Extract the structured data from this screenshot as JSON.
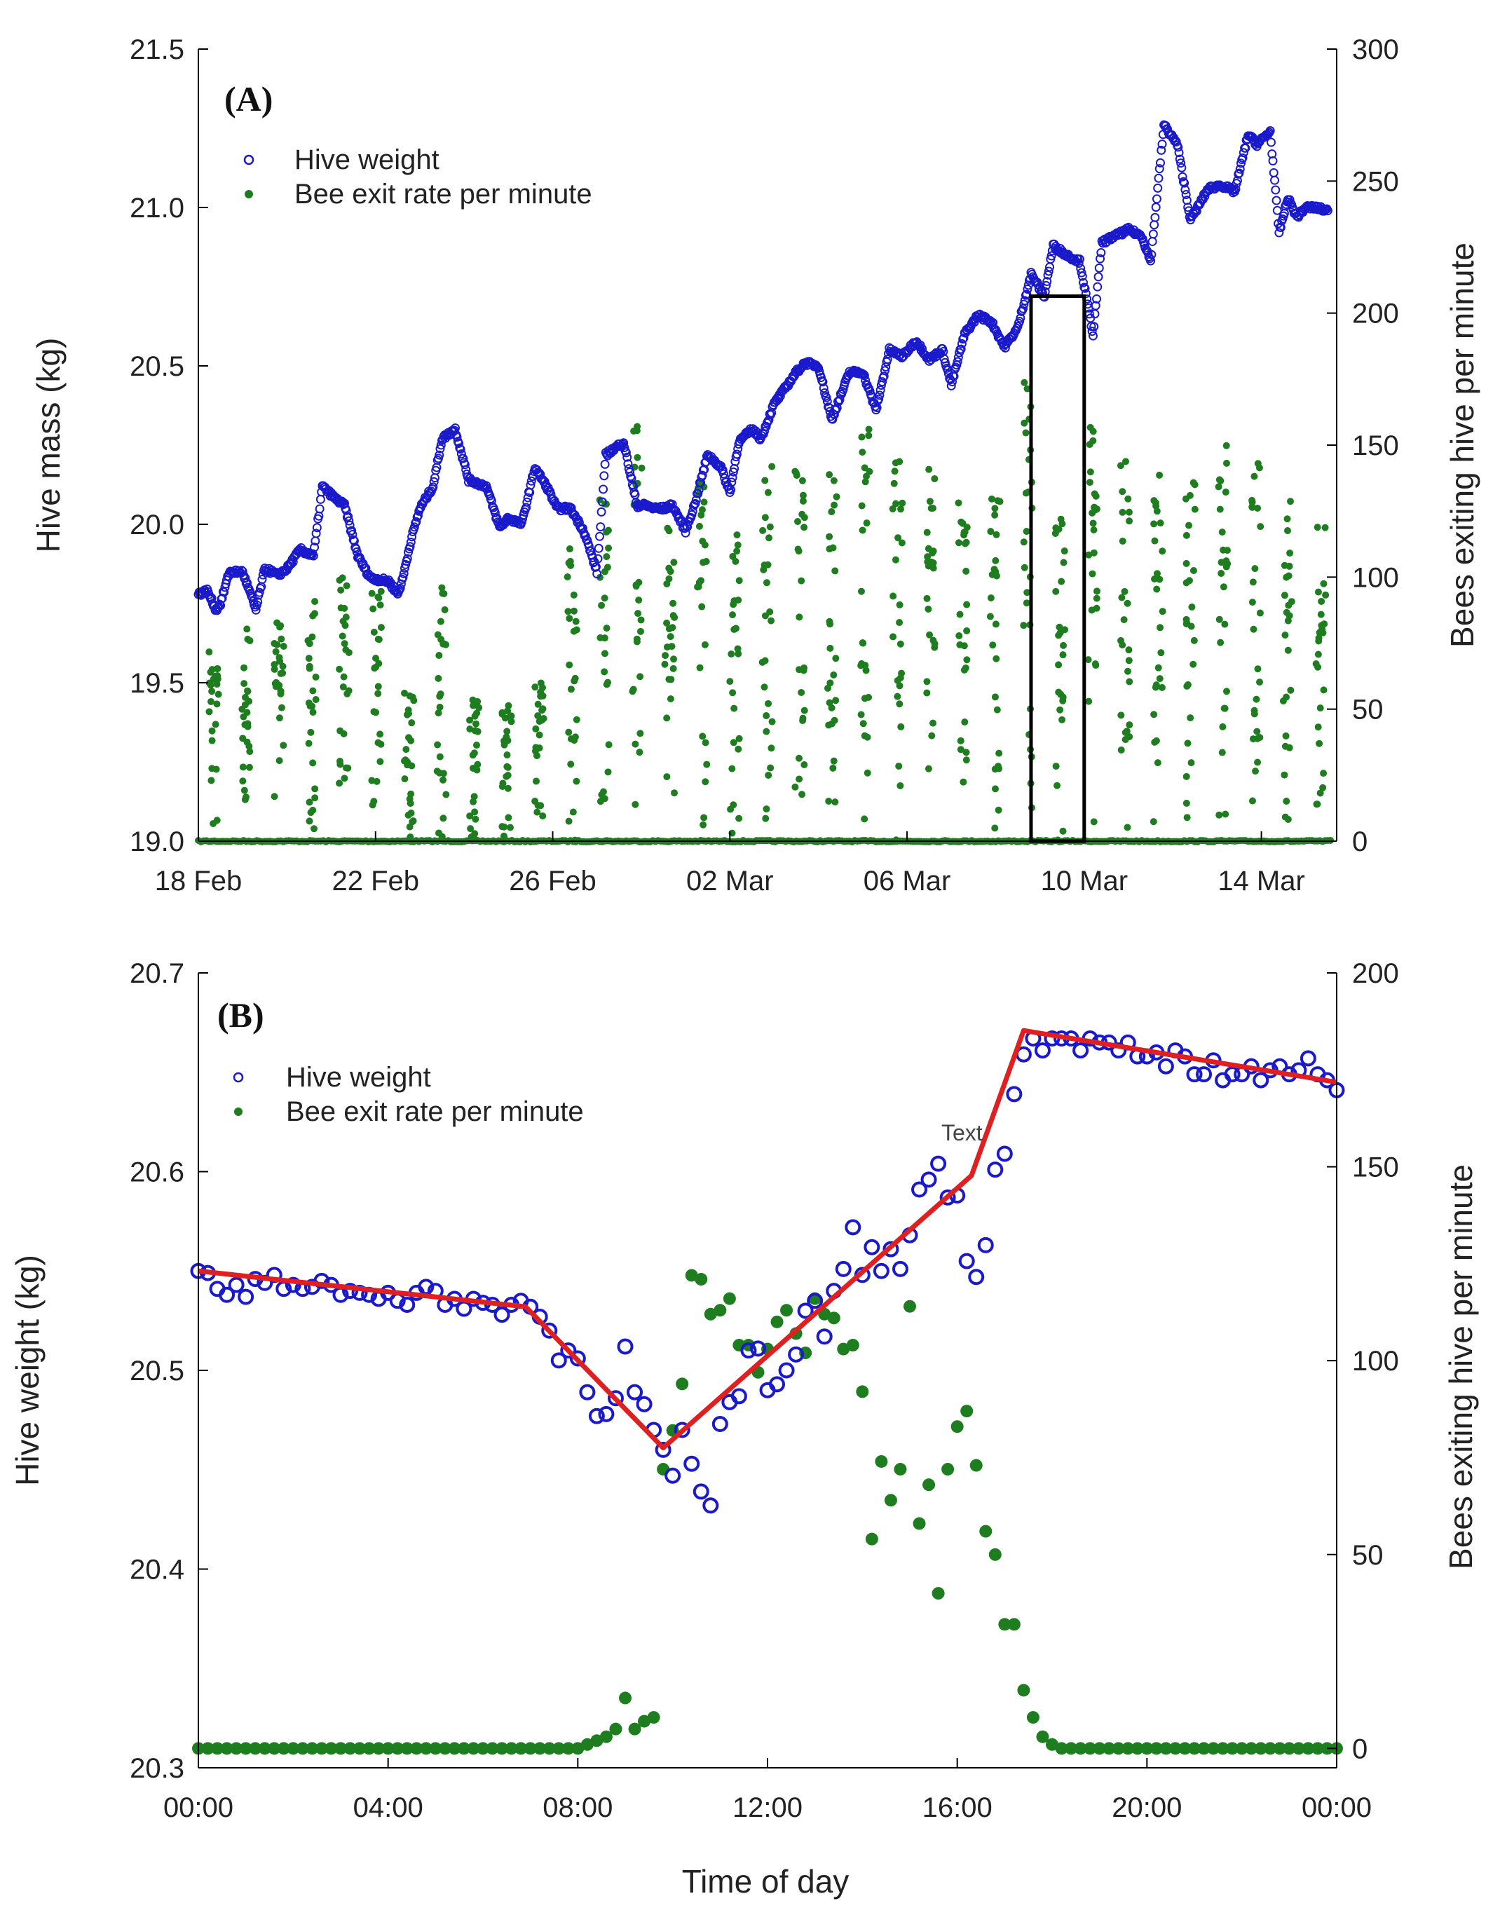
{
  "colors": {
    "hive_weight": "#1a1acc",
    "bee_exit": "#1e7d1e",
    "fit_line": "#e02020",
    "axis": "#000000"
  },
  "chart_data": [
    {
      "panel": "(A)",
      "type": "scatter",
      "xaxis": {
        "range": [
          0,
          25.7
        ],
        "tick_values": [
          0,
          4,
          8,
          12,
          16,
          20,
          24
        ],
        "tick_labels": [
          "18 Feb",
          "22 Feb",
          "26 Feb",
          "02 Mar",
          "06 Mar",
          "10 Mar",
          "14 Mar"
        ]
      },
      "ylabel": "Hive mass (kg)",
      "ylim": [
        19.0,
        21.5
      ],
      "yticks": [
        "19.0",
        "19.5",
        "20.0",
        "20.5",
        "21.0",
        "21.5"
      ],
      "y2label": "Bees exiting hive per minute",
      "y2lim": [
        0,
        300
      ],
      "y2ticks": [
        "0",
        "50",
        "100",
        "150",
        "200",
        "250",
        "300"
      ],
      "legend": {
        "position": "top-left",
        "entries": [
          "Hive weight",
          "Bee exit rate per minute"
        ]
      },
      "highlight_box": {
        "x_start": 18.8,
        "x_end": 20.0,
        "y_start": 19.0,
        "y_end": 20.72
      },
      "series": [
        {
          "name": "Hive weight",
          "axis": "left",
          "x": [
            0.0,
            0.2,
            0.4,
            0.5,
            0.7,
            1.0,
            1.3,
            1.5,
            1.8,
            2.0,
            2.3,
            2.6,
            2.8,
            3.1,
            3.3,
            3.6,
            3.8,
            3.9,
            4.3,
            4.5,
            4.6,
            4.8,
            5.0,
            5.3,
            5.5,
            5.8,
            6.1,
            6.3,
            6.5,
            6.8,
            7.0,
            7.3,
            7.6,
            7.9,
            8.1,
            8.4,
            8.7,
            9.0,
            9.2,
            9.6,
            9.9,
            10.1,
            10.3,
            10.5,
            10.7,
            11.0,
            11.2,
            11.5,
            11.8,
            12.0,
            12.2,
            12.5,
            12.7,
            13.0,
            13.2,
            13.5,
            13.7,
            14.0,
            14.3,
            14.7,
            15.0,
            15.3,
            15.6,
            15.9,
            16.2,
            16.5,
            16.8,
            17.0,
            17.3,
            17.6,
            17.9,
            18.2,
            18.5,
            18.8,
            19.1,
            19.3,
            19.6,
            19.9,
            20.2,
            20.4,
            20.7,
            21.0,
            21.3,
            21.5,
            21.8,
            22.1,
            22.4,
            22.8,
            23.1,
            23.4,
            23.7,
            23.9,
            24.2,
            24.4,
            24.6,
            24.8,
            25.0,
            25.2,
            25.5
          ],
          "y": [
            19.78,
            19.79,
            19.73,
            19.75,
            19.85,
            19.85,
            19.73,
            19.86,
            19.84,
            19.86,
            19.92,
            19.9,
            20.12,
            20.08,
            20.06,
            19.9,
            19.85,
            19.83,
            19.82,
            19.78,
            19.82,
            19.95,
            20.05,
            20.12,
            20.27,
            20.3,
            20.14,
            20.13,
            20.12,
            19.99,
            20.02,
            20.0,
            20.18,
            20.11,
            20.05,
            20.05,
            19.98,
            19.85,
            20.22,
            20.26,
            20.06,
            20.06,
            20.05,
            20.05,
            20.06,
            19.98,
            20.06,
            20.22,
            20.18,
            20.1,
            20.26,
            20.3,
            20.27,
            20.38,
            20.42,
            20.48,
            20.51,
            20.5,
            20.33,
            20.48,
            20.48,
            20.36,
            20.55,
            20.53,
            20.58,
            20.52,
            20.55,
            20.44,
            20.6,
            20.66,
            20.64,
            20.56,
            20.62,
            20.79,
            20.72,
            20.88,
            20.85,
            20.83,
            20.6,
            20.89,
            20.91,
            20.93,
            20.91,
            20.83,
            21.26,
            21.2,
            20.96,
            21.06,
            21.07,
            21.05,
            21.23,
            21.2,
            21.24,
            20.92,
            21.03,
            20.97,
            21.0,
            21.0,
            20.99
          ],
          "shown_label": "Hive weight"
        },
        {
          "name": "Bee exit rate per minute",
          "axis": "right",
          "day_peaks": [
            72,
            84,
            83,
            92,
            100,
            100,
            58,
            98,
            55,
            52,
            62,
            115,
            133,
            158,
            120,
            145,
            116,
            144,
            142,
            160,
            158,
            146,
            149,
            130,
            130,
            178,
            134,
            158,
            150,
            140,
            138,
            153,
            147,
            130,
            121
          ],
          "baseline": 0,
          "shown_label": "Bee exit rate per minute"
        }
      ]
    },
    {
      "panel": "(B)",
      "type": "scatter",
      "xlabel": "Time of day",
      "xaxis": {
        "range": [
          0,
          24
        ],
        "tick_values": [
          0,
          4,
          8,
          12,
          16,
          20,
          24
        ],
        "tick_labels": [
          "00:00",
          "04:00",
          "08:00",
          "12:00",
          "16:00",
          "20:00",
          "00:00"
        ]
      },
      "ylabel": "Hive weight (kg)",
      "ylim": [
        20.3,
        20.7
      ],
      "yticks": [
        "20.3",
        "20.4",
        "20.5",
        "20.6",
        "20.7"
      ],
      "y2label": "Bees exiting hive per minute",
      "y2lim": [
        -5,
        200
      ],
      "y2ticks": [
        "0",
        "50",
        "100",
        "150",
        "200"
      ],
      "legend": {
        "position": "top-left",
        "entries": [
          "Hive weight",
          "Bee exit rate per minute"
        ]
      },
      "annotation": "Text",
      "series": [
        {
          "name": "Hive weight",
          "axis": "left",
          "x": [
            0.0,
            0.2,
            0.4,
            0.6,
            0.8,
            1.0,
            1.2,
            1.4,
            1.6,
            1.8,
            2.0,
            2.2,
            2.4,
            2.6,
            2.8,
            3.0,
            3.2,
            3.4,
            3.6,
            3.8,
            4.0,
            4.2,
            4.4,
            4.6,
            4.8,
            5.0,
            5.2,
            5.4,
            5.6,
            5.8,
            6.0,
            6.2,
            6.4,
            6.6,
            6.8,
            7.0,
            7.2,
            7.4,
            7.6,
            7.8,
            8.0,
            8.2,
            8.4,
            8.6,
            8.8,
            9.0,
            9.2,
            9.4,
            9.6,
            9.8,
            10.0,
            10.2,
            10.4,
            10.6,
            10.8,
            11.0,
            11.2,
            11.4,
            11.6,
            11.8,
            12.0,
            12.2,
            12.4,
            12.6,
            12.8,
            13.0,
            13.2,
            13.4,
            13.6,
            13.8,
            14.0,
            14.2,
            14.4,
            14.6,
            14.8,
            15.0,
            15.2,
            15.4,
            15.6,
            15.8,
            16.0,
            16.2,
            16.4,
            16.6,
            16.8,
            17.0,
            17.2,
            17.4,
            17.6,
            17.8,
            18.0,
            18.2,
            18.4,
            18.6,
            18.8,
            19.0,
            19.2,
            19.4,
            19.6,
            19.8,
            20.0,
            20.2,
            20.4,
            20.6,
            20.8,
            21.0,
            21.2,
            21.4,
            21.6,
            21.8,
            22.0,
            22.2,
            22.4,
            22.6,
            22.8,
            23.0,
            23.2,
            23.4,
            23.6,
            23.8,
            24.0
          ],
          "y": [
            20.55,
            20.549,
            20.541,
            20.538,
            20.543,
            20.537,
            20.546,
            20.544,
            20.548,
            20.541,
            20.543,
            20.541,
            20.542,
            20.545,
            20.543,
            20.538,
            20.54,
            20.539,
            20.538,
            20.536,
            20.539,
            20.535,
            20.533,
            20.539,
            20.542,
            20.54,
            20.533,
            20.536,
            20.531,
            20.536,
            20.534,
            20.533,
            20.528,
            20.533,
            20.535,
            20.532,
            20.527,
            20.52,
            20.505,
            20.51,
            20.506,
            20.489,
            20.477,
            20.478,
            20.486,
            20.512,
            20.489,
            20.483,
            20.47,
            20.46,
            20.447,
            20.47,
            20.453,
            20.439,
            20.432,
            20.473,
            20.484,
            20.487,
            20.51,
            20.511,
            20.49,
            20.493,
            20.5,
            20.508,
            20.53,
            20.535,
            20.517,
            20.54,
            20.551,
            20.572,
            20.548,
            20.562,
            20.55,
            20.561,
            20.551,
            20.568,
            20.591,
            20.596,
            20.604,
            20.587,
            20.588,
            20.555,
            20.547,
            20.563,
            20.601,
            20.609,
            20.639,
            20.659,
            20.667,
            20.661,
            20.667,
            20.667,
            20.667,
            20.661,
            20.667,
            20.665,
            20.665,
            20.661,
            20.665,
            20.658,
            20.658,
            20.66,
            20.653,
            20.661,
            20.658,
            20.649,
            20.649,
            20.656,
            20.646,
            20.649,
            20.649,
            20.653,
            20.646,
            20.651,
            20.653,
            20.649,
            20.651,
            20.657,
            20.649,
            20.646,
            20.641
          ],
          "shown_label": "Hive weight"
        },
        {
          "name": "Bee exit rate per minute",
          "axis": "right",
          "x": [
            0.0,
            0.2,
            0.4,
            0.6,
            0.8,
            1.0,
            1.2,
            1.4,
            1.6,
            1.8,
            2.0,
            2.2,
            2.4,
            2.6,
            2.8,
            3.0,
            3.2,
            3.4,
            3.6,
            3.8,
            4.0,
            4.2,
            4.4,
            4.6,
            4.8,
            5.0,
            5.2,
            5.4,
            5.6,
            5.8,
            6.0,
            6.2,
            6.4,
            6.6,
            6.8,
            7.0,
            7.2,
            7.4,
            7.6,
            7.8,
            8.0,
            8.2,
            8.4,
            8.6,
            8.8,
            9.0,
            9.2,
            9.4,
            9.6,
            9.8,
            10.0,
            10.2,
            10.4,
            10.6,
            10.8,
            11.0,
            11.2,
            11.4,
            11.6,
            11.8,
            12.0,
            12.2,
            12.4,
            12.6,
            12.8,
            13.0,
            13.2,
            13.4,
            13.6,
            13.8,
            14.0,
            14.2,
            14.4,
            14.6,
            14.8,
            15.0,
            15.2,
            15.4,
            15.6,
            15.8,
            16.0,
            16.2,
            16.4,
            16.6,
            16.8,
            17.0,
            17.2,
            17.4,
            17.6,
            17.8,
            18.0,
            18.2,
            18.4,
            18.6,
            18.8,
            19.0,
            19.2,
            19.4,
            19.6,
            19.8,
            20.0,
            20.2,
            20.4,
            20.6,
            20.8,
            21.0,
            21.2,
            21.4,
            21.6,
            21.8,
            22.0,
            22.2,
            22.4,
            22.6,
            22.8,
            23.0,
            23.2,
            23.4,
            23.6,
            23.8,
            24.0
          ],
          "y": [
            0,
            0,
            0,
            0,
            0,
            0,
            0,
            0,
            0,
            0,
            0,
            0,
            0,
            0,
            0,
            0,
            0,
            0,
            0,
            0,
            0,
            0,
            0,
            0,
            0,
            0,
            0,
            0,
            0,
            0,
            0,
            0,
            0,
            0,
            0,
            0,
            0,
            0,
            0,
            0,
            0,
            1,
            2,
            3,
            5,
            13,
            5,
            7,
            8,
            72,
            82,
            94,
            122,
            121,
            112,
            113,
            116,
            104,
            104,
            97,
            103,
            110,
            113,
            107,
            102,
            116,
            112,
            111,
            103,
            104,
            92,
            54,
            74,
            64,
            72,
            114,
            58,
            68,
            40,
            72,
            83,
            87,
            73,
            56,
            50,
            32,
            32,
            15,
            8,
            3,
            1,
            0,
            0,
            0,
            0,
            0,
            0,
            0,
            0,
            0,
            0,
            0,
            0,
            0,
            0,
            0,
            0,
            0,
            0,
            0,
            0,
            0,
            0,
            0,
            0,
            0,
            0,
            0,
            0,
            0,
            0
          ],
          "shown_label": "Bee exit rate per minute"
        },
        {
          "name": "Piecewise linear fit",
          "axis": "left",
          "x": [
            0.0,
            6.9,
            9.8,
            16.3,
            17.4,
            24.0
          ],
          "y": [
            20.55,
            20.532,
            20.461,
            20.598,
            20.671,
            20.645
          ]
        }
      ]
    }
  ]
}
